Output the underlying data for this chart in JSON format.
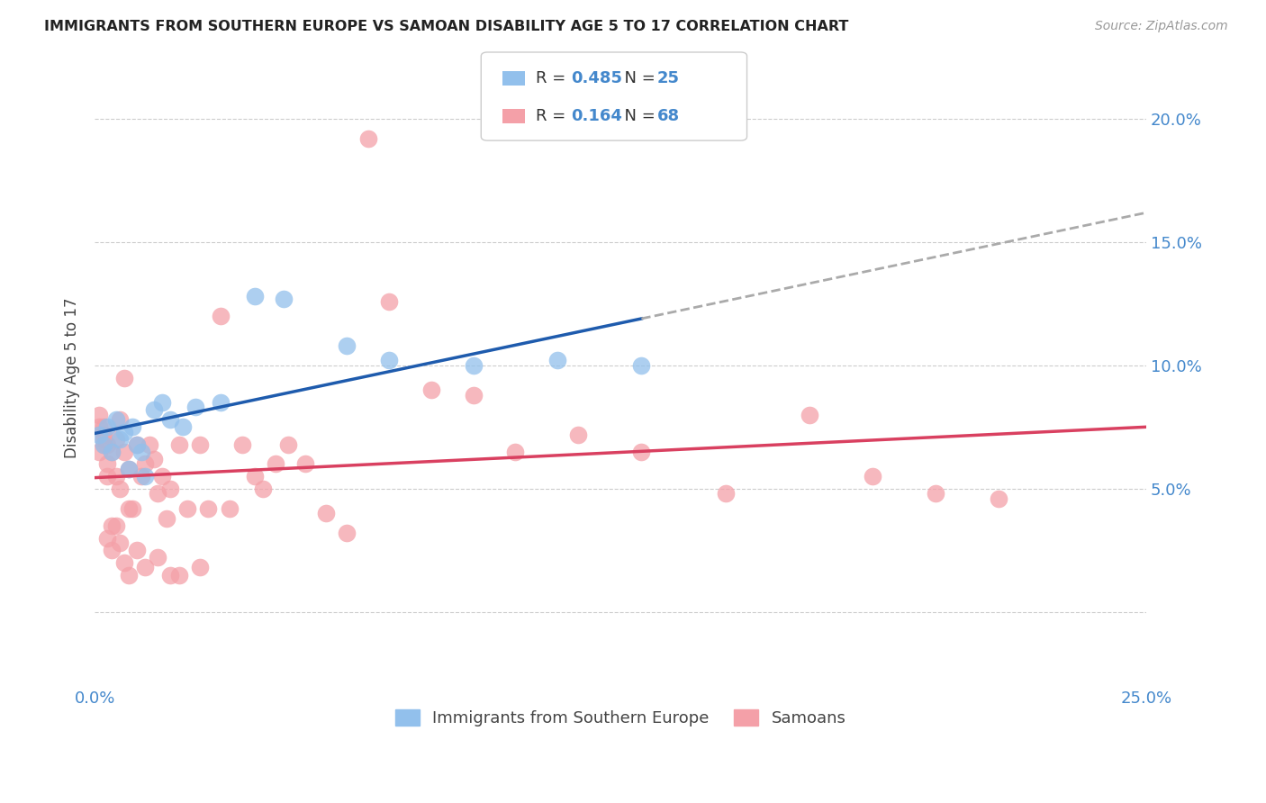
{
  "title": "IMMIGRANTS FROM SOUTHERN EUROPE VS SAMOAN DISABILITY AGE 5 TO 17 CORRELATION CHART",
  "source": "Source: ZipAtlas.com",
  "ylabel": "Disability Age 5 to 17",
  "xlim": [
    0.0,
    0.25
  ],
  "ylim": [
    -0.03,
    0.22
  ],
  "yticks": [
    0.0,
    0.05,
    0.1,
    0.15,
    0.2
  ],
  "ytick_labels": [
    "",
    "5.0%",
    "10.0%",
    "15.0%",
    "20.0%"
  ],
  "xticks": [
    0.0,
    0.05,
    0.1,
    0.15,
    0.2,
    0.25
  ],
  "xtick_labels": [
    "0.0%",
    "",
    "",
    "",
    "",
    "25.0%"
  ],
  "r_blue": "0.485",
  "n_blue": "25",
  "r_pink": "0.164",
  "n_pink": "68",
  "blue_color": "#92C0EC",
  "pink_color": "#F4A0A8",
  "trend_blue_color": "#1E5BAD",
  "trend_pink_color": "#D94060",
  "trend_dashed_color": "#AAAAAA",
  "blue_x": [
    0.001,
    0.002,
    0.003,
    0.004,
    0.005,
    0.006,
    0.007,
    0.008,
    0.009,
    0.01,
    0.011,
    0.012,
    0.014,
    0.016,
    0.018,
    0.021,
    0.024,
    0.03,
    0.038,
    0.045,
    0.06,
    0.07,
    0.09,
    0.11,
    0.13
  ],
  "blue_y": [
    0.072,
    0.068,
    0.075,
    0.065,
    0.078,
    0.07,
    0.073,
    0.058,
    0.075,
    0.068,
    0.065,
    0.055,
    0.082,
    0.085,
    0.078,
    0.075,
    0.083,
    0.085,
    0.128,
    0.127,
    0.108,
    0.102,
    0.1,
    0.102,
    0.1
  ],
  "pink_x": [
    0.001,
    0.001,
    0.001,
    0.002,
    0.002,
    0.002,
    0.002,
    0.003,
    0.003,
    0.003,
    0.004,
    0.004,
    0.005,
    0.005,
    0.006,
    0.006,
    0.007,
    0.007,
    0.008,
    0.008,
    0.009,
    0.01,
    0.011,
    0.012,
    0.013,
    0.014,
    0.015,
    0.016,
    0.017,
    0.018,
    0.02,
    0.022,
    0.025,
    0.027,
    0.03,
    0.032,
    0.035,
    0.038,
    0.04,
    0.043,
    0.046,
    0.05,
    0.055,
    0.06,
    0.065,
    0.07,
    0.08,
    0.09,
    0.1,
    0.115,
    0.13,
    0.15,
    0.17,
    0.185,
    0.2,
    0.215,
    0.003,
    0.004,
    0.005,
    0.006,
    0.007,
    0.008,
    0.01,
    0.012,
    0.015,
    0.018,
    0.02,
    0.025
  ],
  "pink_y": [
    0.075,
    0.065,
    0.08,
    0.07,
    0.075,
    0.068,
    0.072,
    0.06,
    0.068,
    0.055,
    0.035,
    0.065,
    0.07,
    0.055,
    0.05,
    0.078,
    0.065,
    0.095,
    0.042,
    0.058,
    0.042,
    0.068,
    0.055,
    0.06,
    0.068,
    0.062,
    0.048,
    0.055,
    0.038,
    0.05,
    0.068,
    0.042,
    0.068,
    0.042,
    0.12,
    0.042,
    0.068,
    0.055,
    0.05,
    0.06,
    0.068,
    0.06,
    0.04,
    0.032,
    0.192,
    0.126,
    0.09,
    0.088,
    0.065,
    0.072,
    0.065,
    0.048,
    0.08,
    0.055,
    0.048,
    0.046,
    0.03,
    0.025,
    0.035,
    0.028,
    0.02,
    0.015,
    0.025,
    0.018,
    0.022,
    0.015,
    0.015,
    0.018
  ],
  "background_color": "#ffffff",
  "grid_color": "#cccccc"
}
